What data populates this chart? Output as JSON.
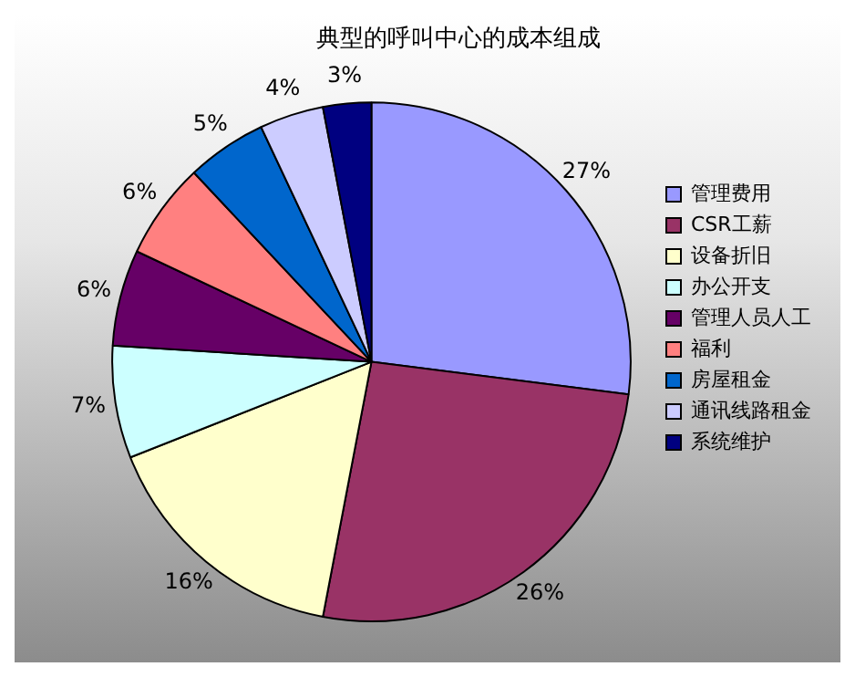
{
  "chart_data": {
    "type": "pie",
    "title": "典型的呼叫中心的成本组成",
    "categories": [
      "管理费用",
      "CSR工薪",
      "设备折旧",
      "办公开支",
      "管理人员人工",
      "福利",
      "房屋租金",
      "通讯线路租金",
      "系统维护"
    ],
    "values": [
      27,
      26,
      16,
      7,
      6,
      6,
      5,
      4,
      3
    ],
    "value_labels": [
      "27%",
      "26%",
      "16%",
      "7%",
      "6%",
      "6%",
      "5%",
      "4%",
      "3%"
    ],
    "colors": [
      "#9999ff",
      "#993366",
      "#ffffcc",
      "#ccffff",
      "#660066",
      "#ff8080",
      "#0066cc",
      "#ccccff",
      "#000080"
    ],
    "legend": "right"
  }
}
